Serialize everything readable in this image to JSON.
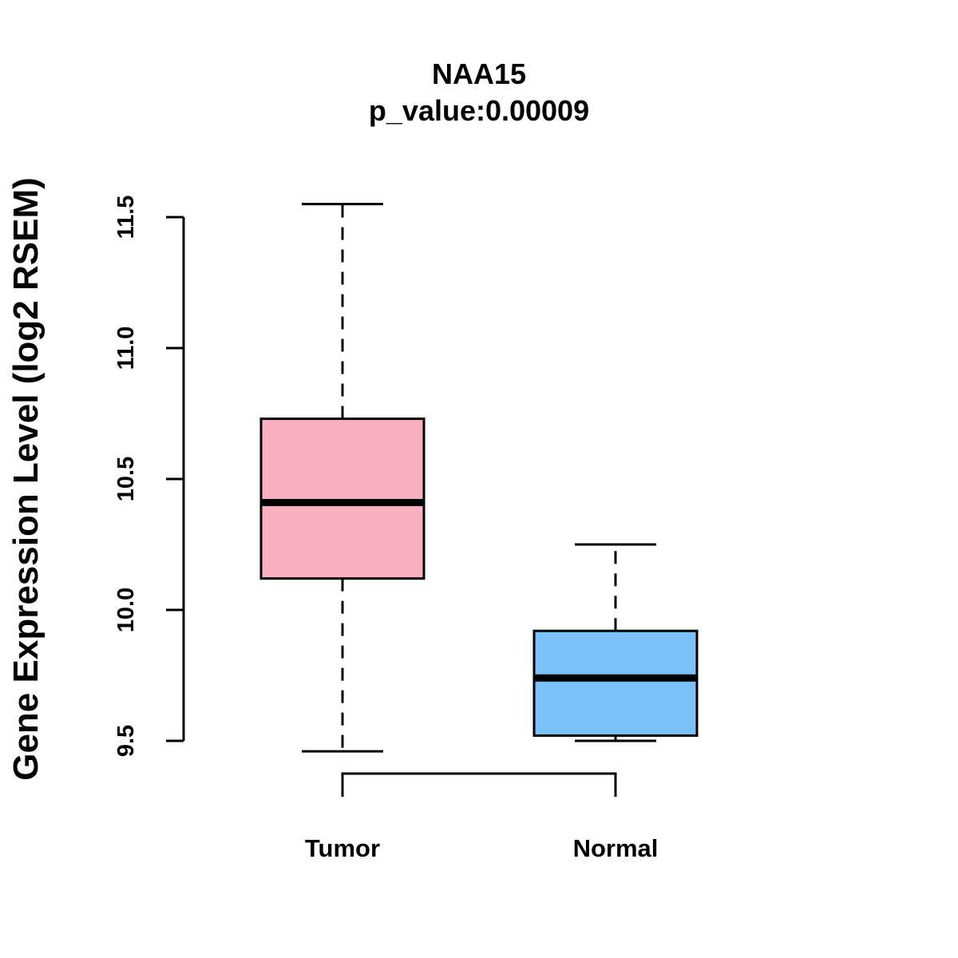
{
  "chart_data": {
    "type": "box",
    "title": "NAA15",
    "subtitle": "p_value:0.00009",
    "xlabel": "",
    "ylabel": "Gene Expression Level (log2 RSEM)",
    "ylim": [
      9.5,
      11.5
    ],
    "yticks": [
      "9.5",
      "10.0",
      "10.5",
      "11.0",
      "11.5"
    ],
    "grid": false,
    "categories": [
      "Tumor",
      "Normal"
    ],
    "boxes": [
      {
        "name": "Tumor",
        "whisker_low": 9.46,
        "q1": 10.12,
        "median": 10.41,
        "q3": 10.73,
        "whisker_high": 11.55,
        "color": "#FBB0C2"
      },
      {
        "name": "Normal",
        "whisker_low": 9.5,
        "q1": 9.52,
        "median": 9.74,
        "q3": 9.92,
        "whisker_high": 10.25,
        "color": "#7AC1F7"
      }
    ],
    "comparison_bracket": [
      "Tumor",
      "Normal"
    ]
  }
}
